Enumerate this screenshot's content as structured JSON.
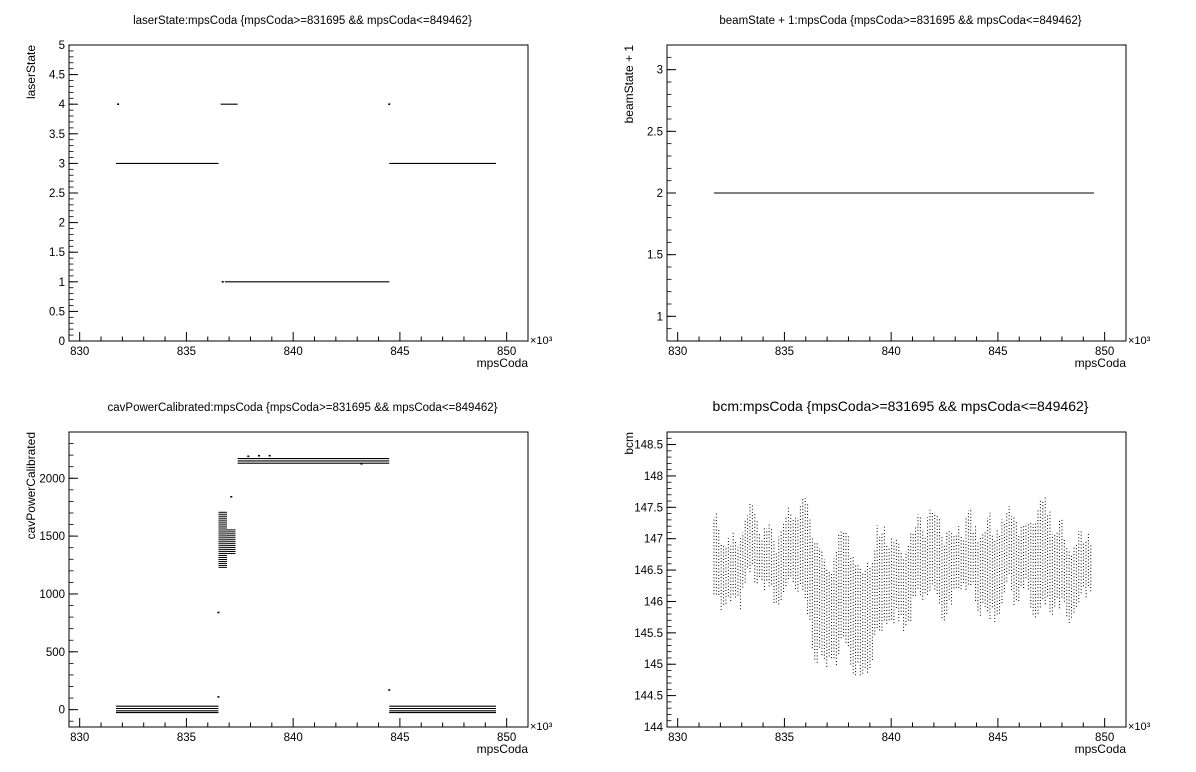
{
  "chart_data": [
    {
      "type": "scatter",
      "title": "laserState:mpsCoda {mpsCoda>=831695 && mpsCoda<=849462}",
      "xlabel": "mpsCoda",
      "ylabel": "laserState",
      "x_exponent_label": "×10³",
      "xlim": [
        829.5,
        851
      ],
      "ylim": [
        0,
        5
      ],
      "xticks": [
        "830",
        "835",
        "840",
        "845",
        "850"
      ],
      "yticks": [
        "0",
        "0.5",
        "1",
        "1.5",
        "2",
        "2.5",
        "3",
        "3.5",
        "4",
        "4.5",
        "5"
      ],
      "segments": [
        {
          "x": [
            831.7,
            836.5
          ],
          "y": 3
        },
        {
          "x": [
            836.8,
            844.5
          ],
          "y": 1
        },
        {
          "x": [
            844.5,
            849.5
          ],
          "y": 3
        },
        {
          "x": [
            836.6,
            837.4
          ],
          "y": 4
        }
      ],
      "points": [
        [
          831.8,
          4
        ],
        [
          844.5,
          4
        ],
        [
          836.7,
          1
        ]
      ]
    },
    {
      "type": "scatter",
      "title": "beamState + 1:mpsCoda {mpsCoda>=831695 && mpsCoda<=849462}",
      "xlabel": "mpsCoda",
      "ylabel": "beamState + 1",
      "x_exponent_label": "×10³",
      "xlim": [
        829.5,
        851
      ],
      "ylim": [
        0.8,
        3.2
      ],
      "xticks": [
        "830",
        "835",
        "840",
        "845",
        "850"
      ],
      "yticks": [
        "1",
        "1.5",
        "2",
        "2.5",
        "3"
      ],
      "segments": [
        {
          "x": [
            831.7,
            849.5
          ],
          "y": 2
        }
      ],
      "points": []
    },
    {
      "type": "scatter",
      "title": "cavPowerCalibrated:mpsCoda {mpsCoda>=831695 && mpsCoda<=849462}",
      "xlabel": "mpsCoda",
      "ylabel": "cavPowerCalibrated",
      "x_exponent_label": "×10³",
      "xlim": [
        829.5,
        851
      ],
      "ylim": [
        -150,
        2400
      ],
      "xticks": [
        "830",
        "835",
        "840",
        "845",
        "850"
      ],
      "yticks": [
        "0",
        "500",
        "1000",
        "1500",
        "2000"
      ],
      "segments": [
        {
          "x": [
            831.7,
            836.5
          ],
          "y": 30
        },
        {
          "x": [
            831.7,
            836.5
          ],
          "y": 10
        },
        {
          "x": [
            831.7,
            836.5
          ],
          "y": -10
        },
        {
          "x": [
            831.7,
            836.5
          ],
          "y": -25
        },
        {
          "x": [
            837.4,
            844.5
          ],
          "y": 2170
        },
        {
          "x": [
            837.4,
            844.5
          ],
          "y": 2150
        },
        {
          "x": [
            837.4,
            844.5
          ],
          "y": 2130
        },
        {
          "x": [
            844.5,
            849.5
          ],
          "y": 30
        },
        {
          "x": [
            844.5,
            849.5
          ],
          "y": 10
        },
        {
          "x": [
            844.5,
            849.5
          ],
          "y": -10
        },
        {
          "x": [
            844.5,
            849.5
          ],
          "y": -25
        }
      ],
      "clusters": [
        {
          "x": [
            836.5,
            836.9
          ],
          "y": [
            1230,
            1720
          ]
        },
        {
          "x": [
            836.9,
            837.3
          ],
          "y": [
            1350,
            1560
          ]
        }
      ],
      "points": [
        [
          836.5,
          840
        ],
        [
          837.1,
          1840
        ],
        [
          836.5,
          110
        ],
        [
          844.5,
          170
        ],
        [
          837.9,
          2190
        ],
        [
          838.4,
          2195
        ],
        [
          838.9,
          2195
        ],
        [
          843.2,
          2125
        ]
      ]
    },
    {
      "type": "scatter",
      "title": "bcm:mpsCoda {mpsCoda>=831695 && mpsCoda<=849462}",
      "xlabel": "mpsCoda",
      "ylabel": "bcm",
      "x_exponent_label": "×10³",
      "xlim": [
        829.5,
        851
      ],
      "ylim": [
        144,
        148.7
      ],
      "xticks": [
        "830",
        "835",
        "840",
        "845",
        "850"
      ],
      "yticks": [
        "144",
        "144.5",
        "145",
        "145.5",
        "146",
        "146.5",
        "147",
        "147.5",
        "148",
        "148.5"
      ],
      "band_x": [
        831.7,
        832.5,
        833.2,
        834.0,
        834.8,
        835.6,
        836.2,
        836.8,
        837.4,
        838.0,
        838.6,
        839.2,
        839.8,
        840.4,
        841.0,
        841.6,
        842.2,
        842.8,
        843.4,
        844.0,
        844.6,
        845.2,
        845.8,
        846.4,
        847.0,
        847.6,
        848.2,
        848.8,
        849.4
      ],
      "band_low": [
        145.5,
        145.6,
        145.7,
        145.8,
        145.7,
        145.6,
        145.2,
        144.6,
        144.5,
        144.7,
        144.5,
        144.8,
        145.0,
        145.3,
        145.4,
        145.5,
        145.5,
        145.6,
        145.7,
        145.5,
        145.4,
        145.6,
        145.5,
        145.7,
        145.4,
        145.3,
        145.2,
        145.6,
        145.8
      ],
      "band_high": [
        147.7,
        147.5,
        147.8,
        147.6,
        147.7,
        147.8,
        148.0,
        147.2,
        147.1,
        147.5,
        147.2,
        147.3,
        147.5,
        147.4,
        147.7,
        147.6,
        147.8,
        147.7,
        147.6,
        147.5,
        147.9,
        147.7,
        147.6,
        147.8,
        148.3,
        147.6,
        147.4,
        147.6,
        147.6
      ],
      "points": []
    }
  ]
}
